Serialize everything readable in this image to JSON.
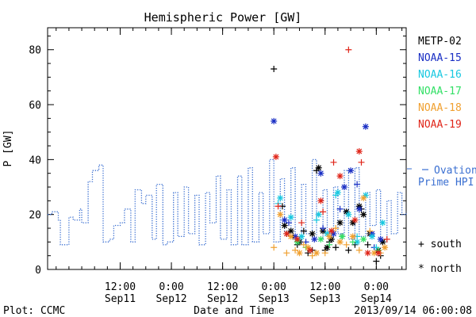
{
  "chart_data": {
    "type": "scatter",
    "title": "Hemispheric Power [GW]",
    "ylabel": "P [GW]",
    "xlabel": "Date and Time",
    "ylim": [
      0,
      88
    ],
    "x_range": [
      "2013-09-10 19:00",
      "2013-09-14 07:00"
    ],
    "yticks": [
      0,
      20,
      40,
      60,
      80
    ],
    "xticks": [
      {
        "t": "2013-09-11 12:00",
        "top": "12:00",
        "bottom": "Sep11"
      },
      {
        "t": "2013-09-12 00:00",
        "top": "0:00",
        "bottom": "Sep12"
      },
      {
        "t": "2013-09-12 12:00",
        "top": "12:00",
        "bottom": "Sep12"
      },
      {
        "t": "2013-09-13 00:00",
        "top": "0:00",
        "bottom": "Sep13"
      },
      {
        "t": "2013-09-13 12:00",
        "top": "12:00",
        "bottom": "Sep13"
      },
      {
        "t": "2013-09-14 00:00",
        "top": "0:00",
        "bottom": "Sep14"
      }
    ],
    "ovation": {
      "name": "Ovation Prime HPI",
      "label_lines": [
        "Ovation",
        "Prime HPI"
      ],
      "color": "#3a6fd1",
      "x": [
        "2013-09-10 19:00",
        "2013-09-10 20:00",
        "2013-09-10 21:30",
        "2013-09-10 22:00",
        "2013-09-10 23:00",
        "2013-09-11 00:00",
        "2013-09-11 01:00",
        "2013-09-11 02:30",
        "2013-09-11 03:00",
        "2013-09-11 04:30",
        "2013-09-11 05:30",
        "2013-09-11 07:00",
        "2013-09-11 08:00",
        "2013-09-11 09:30",
        "2013-09-11 10:30",
        "2013-09-11 12:00",
        "2013-09-11 13:00",
        "2013-09-11 14:30",
        "2013-09-11 15:30",
        "2013-09-11 17:00",
        "2013-09-11 18:00",
        "2013-09-11 19:30",
        "2013-09-11 20:30",
        "2013-09-11 22:00",
        "2013-09-11 23:00",
        "2013-09-12 00:30",
        "2013-09-12 01:30",
        "2013-09-12 03:00",
        "2013-09-12 04:00",
        "2013-09-12 05:30",
        "2013-09-12 06:30",
        "2013-09-12 08:00",
        "2013-09-12 09:00",
        "2013-09-12 10:30",
        "2013-09-12 11:30",
        "2013-09-12 13:00",
        "2013-09-12 14:00",
        "2013-09-12 15:30",
        "2013-09-12 16:30",
        "2013-09-12 18:00",
        "2013-09-12 19:00",
        "2013-09-12 20:30",
        "2013-09-12 21:30",
        "2013-09-12 23:00",
        "2013-09-13 00:00",
        "2013-09-13 01:30",
        "2013-09-13 02:30",
        "2013-09-13 04:00",
        "2013-09-13 05:00",
        "2013-09-13 06:30",
        "2013-09-13 07:30",
        "2013-09-13 09:00",
        "2013-09-13 10:00",
        "2013-09-13 11:30",
        "2013-09-13 12:30",
        "2013-09-13 14:00",
        "2013-09-13 15:00",
        "2013-09-13 16:30",
        "2013-09-13 17:30",
        "2013-09-13 19:00",
        "2013-09-13 20:00",
        "2013-09-13 21:30",
        "2013-09-13 22:30",
        "2013-09-14 00:00",
        "2013-09-14 01:00",
        "2013-09-14 02:30",
        "2013-09-14 03:30",
        "2013-09-14 05:00",
        "2013-09-14 06:00",
        "2013-09-14 07:00"
      ],
      "y": [
        20,
        21,
        18,
        9,
        9,
        19,
        18,
        22,
        17,
        32,
        36,
        38,
        10,
        11,
        16,
        17,
        22,
        10,
        29,
        24,
        27,
        11,
        31,
        9,
        10,
        28,
        12,
        30,
        13,
        27,
        9,
        28,
        17,
        34,
        11,
        29,
        9,
        34,
        9,
        37,
        10,
        28,
        13,
        40,
        10,
        33,
        14,
        37,
        10,
        31,
        13,
        40,
        11,
        29,
        12,
        30,
        13,
        36,
        11,
        37,
        12,
        28,
        16,
        29,
        10,
        25,
        13,
        28,
        20,
        21
      ]
    },
    "satellites": [
      {
        "name": "METP-02",
        "color": "#000000",
        "south": [
          [
            "2013-09-13 00:00",
            73
          ],
          [
            "2013-09-13 02:00",
            23
          ],
          [
            "2013-09-13 03:00",
            13
          ],
          [
            "2013-09-13 04:30",
            12
          ],
          [
            "2013-09-13 05:30",
            9
          ],
          [
            "2013-09-13 07:00",
            14
          ],
          [
            "2013-09-13 08:00",
            6
          ],
          [
            "2013-09-13 09:00",
            7
          ],
          [
            "2013-09-13 10:00",
            36
          ],
          [
            "2013-09-13 12:00",
            7
          ],
          [
            "2013-09-13 13:00",
            10
          ],
          [
            "2013-09-13 14:30",
            8
          ],
          [
            "2013-09-13 16:00",
            12
          ],
          [
            "2013-09-13 17:30",
            7
          ],
          [
            "2013-09-13 19:00",
            9
          ],
          [
            "2013-09-13 20:30",
            22
          ],
          [
            "2013-09-13 22:00",
            9
          ],
          [
            "2013-09-14 00:00",
            3
          ],
          [
            "2013-09-14 01:00",
            5
          ]
        ],
        "north": [
          [
            "2013-09-13 02:30",
            16
          ],
          [
            "2013-09-13 04:00",
            14
          ],
          [
            "2013-09-13 06:00",
            10
          ],
          [
            "2013-09-13 09:00",
            13
          ],
          [
            "2013-09-13 10:30",
            37
          ],
          [
            "2013-09-13 11:30",
            14
          ],
          [
            "2013-09-13 12:30",
            8
          ],
          [
            "2013-09-13 13:30",
            11
          ],
          [
            "2013-09-13 15:30",
            17
          ],
          [
            "2013-09-13 17:00",
            21
          ],
          [
            "2013-09-13 18:30",
            17
          ],
          [
            "2013-09-13 20:00",
            23
          ],
          [
            "2013-09-13 21:00",
            20
          ],
          [
            "2013-09-13 22:30",
            13
          ],
          [
            "2013-09-14 00:30",
            7
          ],
          [
            "2013-09-14 01:30",
            10
          ]
        ]
      },
      {
        "name": "NOAA-15",
        "color": "#1a2fc4",
        "south": [
          [
            "2013-09-13 03:30",
            17
          ],
          [
            "2013-09-13 07:30",
            10
          ],
          [
            "2013-09-13 11:30",
            15
          ],
          [
            "2013-09-13 15:30",
            22
          ],
          [
            "2013-09-13 19:30",
            31
          ],
          [
            "2013-09-13 23:30",
            8
          ]
        ],
        "north": [
          [
            "2013-09-13 00:00",
            54
          ],
          [
            "2013-09-13 02:30",
            18
          ],
          [
            "2013-09-13 05:00",
            12
          ],
          [
            "2013-09-13 09:30",
            11
          ],
          [
            "2013-09-13 11:00",
            35
          ],
          [
            "2013-09-13 14:00",
            13
          ],
          [
            "2013-09-13 16:30",
            30
          ],
          [
            "2013-09-13 18:00",
            36
          ],
          [
            "2013-09-13 20:00",
            22
          ],
          [
            "2013-09-13 21:30",
            52
          ],
          [
            "2013-09-13 23:00",
            13
          ],
          [
            "2013-09-14 01:00",
            11
          ]
        ]
      },
      {
        "name": "NOAA-16",
        "color": "#18c8e0",
        "south": [
          [
            "2013-09-13 01:00",
            24
          ],
          [
            "2013-09-13 06:00",
            11
          ],
          [
            "2013-09-13 10:00",
            18
          ],
          [
            "2013-09-13 14:30",
            27
          ],
          [
            "2013-09-13 19:30",
            12
          ],
          [
            "2013-09-14 00:00",
            8
          ]
        ],
        "north": [
          [
            "2013-09-13 01:30",
            26
          ],
          [
            "2013-09-13 04:00",
            19
          ],
          [
            "2013-09-13 06:30",
            12
          ],
          [
            "2013-09-13 10:30",
            20
          ],
          [
            "2013-09-13 12:30",
            13
          ],
          [
            "2013-09-13 15:00",
            28
          ],
          [
            "2013-09-13 17:30",
            20
          ],
          [
            "2013-09-13 19:30",
            10
          ],
          [
            "2013-09-13 21:30",
            27
          ],
          [
            "2013-09-13 23:00",
            12
          ],
          [
            "2013-09-14 01:30",
            17
          ]
        ]
      },
      {
        "name": "NOAA-17",
        "color": "#33e066",
        "south": [
          [
            "2013-09-13 07:30",
            8
          ],
          [
            "2013-09-13 13:00",
            9
          ],
          [
            "2013-09-13 18:30",
            10
          ],
          [
            "2013-09-14 00:30",
            7
          ]
        ],
        "north": [
          [
            "2013-09-13 05:30",
            10
          ],
          [
            "2013-09-13 11:00",
            11
          ],
          [
            "2013-09-13 16:00",
            12
          ],
          [
            "2013-09-13 21:00",
            11
          ]
        ]
      },
      {
        "name": "NOAA-18",
        "color": "#f0a030",
        "south": [
          [
            "2013-09-13 00:00",
            8
          ],
          [
            "2013-09-13 03:00",
            6
          ],
          [
            "2013-09-13 05:00",
            7
          ],
          [
            "2013-09-13 07:00",
            9
          ],
          [
            "2013-09-13 09:00",
            5
          ],
          [
            "2013-09-13 12:00",
            6
          ],
          [
            "2013-09-13 14:30",
            15
          ],
          [
            "2013-09-13 17:00",
            9
          ],
          [
            "2013-09-13 20:00",
            7
          ],
          [
            "2013-09-13 22:30",
            14
          ],
          [
            "2013-09-14 01:00",
            6
          ]
        ],
        "north": [
          [
            "2013-09-13 01:30",
            20
          ],
          [
            "2013-09-13 04:00",
            12
          ],
          [
            "2013-09-13 06:00",
            6
          ],
          [
            "2013-09-13 08:00",
            8
          ],
          [
            "2013-09-13 10:00",
            6
          ],
          [
            "2013-09-13 13:00",
            12
          ],
          [
            "2013-09-13 15:30",
            10
          ],
          [
            "2013-09-13 18:30",
            12
          ],
          [
            "2013-09-13 21:00",
            26
          ],
          [
            "2013-09-13 23:30",
            6
          ],
          [
            "2013-09-14 02:00",
            8
          ]
        ]
      },
      {
        "name": "NOAA-19",
        "color": "#e0261a",
        "south": [
          [
            "2013-09-13 01:00",
            23
          ],
          [
            "2013-09-13 06:30",
            17
          ],
          [
            "2013-09-13 11:30",
            21
          ],
          [
            "2013-09-13 14:00",
            39
          ],
          [
            "2013-09-13 17:30",
            80
          ],
          [
            "2013-09-13 20:30",
            39
          ],
          [
            "2013-09-14 02:30",
            11
          ]
        ],
        "north": [
          [
            "2013-09-13 00:30",
            41
          ],
          [
            "2013-09-13 03:00",
            13
          ],
          [
            "2013-09-13 05:30",
            11
          ],
          [
            "2013-09-13 08:30",
            7
          ],
          [
            "2013-09-13 11:00",
            25
          ],
          [
            "2013-09-13 13:30",
            14
          ],
          [
            "2013-09-13 15:30",
            34
          ],
          [
            "2013-09-13 19:00",
            18
          ],
          [
            "2013-09-13 20:00",
            43
          ],
          [
            "2013-09-13 22:00",
            6
          ],
          [
            "2013-09-14 00:30",
            6
          ]
        ]
      }
    ],
    "marker_legend": {
      "south": "+ south",
      "north": "* north"
    },
    "footer": {
      "left": "Plot: CCMC",
      "right": "2013/09/14 06:00:08"
    }
  }
}
